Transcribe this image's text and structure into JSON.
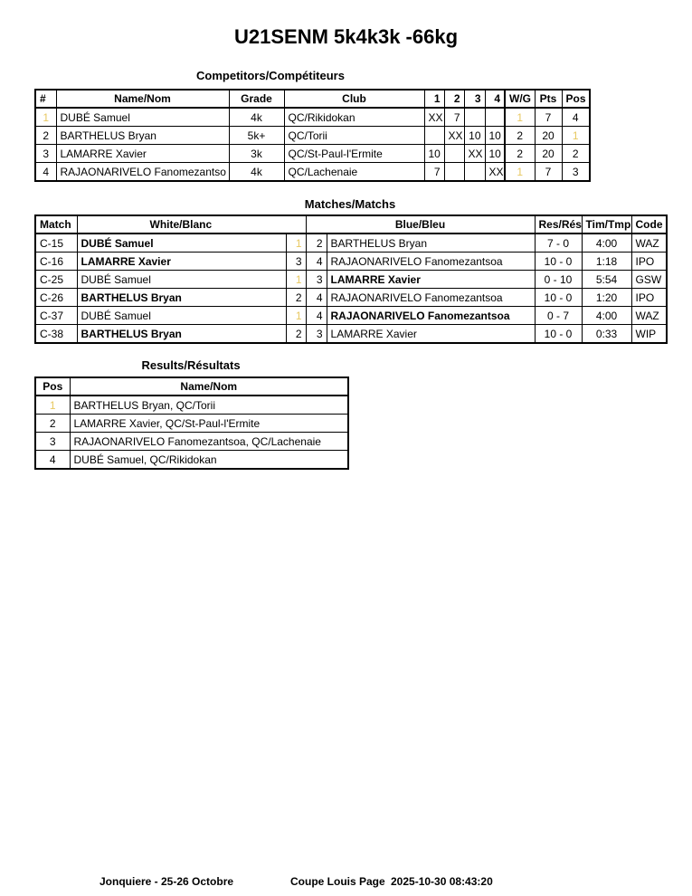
{
  "title": "U21SENM 5k4k3k -66kg",
  "competitors": {
    "title": "Competitors/Compétiteurs",
    "headers": [
      "#",
      "Name/Nom",
      "Grade",
      "Club",
      "1",
      "2",
      "3",
      "4",
      "W/G",
      "Pts",
      "Pos"
    ],
    "rows": [
      [
        "1",
        "DUBÉ Samuel",
        "4k",
        "QC/Rikidokan",
        "XX",
        "7",
        "",
        "",
        "1",
        "7",
        "4"
      ],
      [
        "2",
        "BARTHELUS Bryan",
        "5k+",
        "QC/Torii",
        "",
        "XX",
        "10",
        "10",
        "2",
        "20",
        "1"
      ],
      [
        "3",
        "LAMARRE Xavier",
        "3k",
        "QC/St-Paul-l'Ermite",
        "10",
        "",
        "XX",
        "10",
        "2",
        "20",
        "2"
      ],
      [
        "4",
        "RAJAONARIVELO Fanomezantso",
        "4k",
        "QC/Lachenaie",
        "7",
        "",
        "",
        "XX",
        "1",
        "7",
        "3"
      ]
    ]
  },
  "matches": {
    "title": "Matches/Matchs",
    "headers": [
      "Match",
      "White/Blanc",
      "Blue/Bleu",
      "Res/Rés",
      "Tim/Tmp",
      "Code"
    ],
    "rows": [
      {
        "match": "C-15",
        "white": "DUBÉ Samuel",
        "wn": "1",
        "bn": "2",
        "blue": "BARTHELUS Bryan",
        "res": "7 - 0",
        "time": "4:00",
        "code": "WAZ",
        "winner": "white"
      },
      {
        "match": "C-16",
        "white": "LAMARRE Xavier",
        "wn": "3",
        "bn": "4",
        "blue": "RAJAONARIVELO Fanomezantsoa",
        "res": "10 - 0",
        "time": "1:18",
        "code": "IPO",
        "winner": "white"
      },
      {
        "match": "C-25",
        "white": "DUBÉ Samuel",
        "wn": "1",
        "bn": "3",
        "blue": "LAMARRE Xavier",
        "res": "0 - 10",
        "time": "5:54",
        "code": "GSW",
        "winner": "blue"
      },
      {
        "match": "C-26",
        "white": "BARTHELUS Bryan",
        "wn": "2",
        "bn": "4",
        "blue": "RAJAONARIVELO Fanomezantsoa",
        "res": "10 - 0",
        "time": "1:20",
        "code": "IPO",
        "winner": "white"
      },
      {
        "match": "C-37",
        "white": "DUBÉ Samuel",
        "wn": "1",
        "bn": "4",
        "blue": "RAJAONARIVELO Fanomezantsoa",
        "res": "0 - 7",
        "time": "4:00",
        "code": "WAZ",
        "winner": "blue"
      },
      {
        "match": "C-38",
        "white": "BARTHELUS Bryan",
        "wn": "2",
        "bn": "3",
        "blue": "LAMARRE Xavier",
        "res": "10 - 0",
        "time": "0:33",
        "code": "WIP",
        "winner": "white"
      }
    ]
  },
  "results": {
    "title": "Results/Résultats",
    "headers": [
      "Pos",
      "Name/Nom"
    ],
    "rows": [
      [
        "1",
        "BARTHELUS Bryan, QC/Torii"
      ],
      [
        "2",
        "LAMARRE Xavier, QC/St-Paul-l'Ermite"
      ],
      [
        "3",
        "RAJAONARIVELO Fanomezantsoa, QC/Lachenaie"
      ],
      [
        "4",
        "DUBÉ Samuel, QC/Rikidokan"
      ]
    ]
  },
  "footer": {
    "location": "Jonquiere - 25-26 Octobre",
    "event": "Coupe Louis Page",
    "datetime": "2025-10-30 08:43:20"
  },
  "colors": {
    "one_digit": "#e8c860"
  }
}
